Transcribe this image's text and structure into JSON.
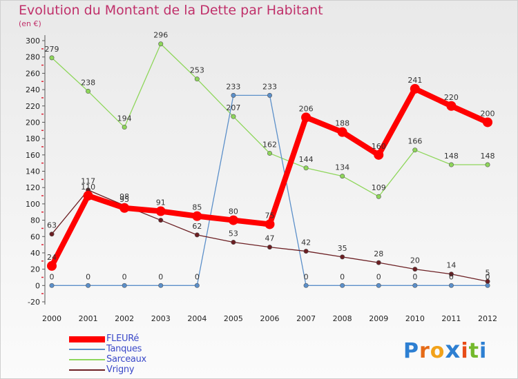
{
  "title": "Evolution du Montant de la Dette par Habitant",
  "subtitle": "(en €)",
  "brand": {
    "letters": [
      "P",
      "r",
      "o",
      "x",
      "i",
      "t",
      "i"
    ],
    "colors": [
      "#2d7fd2",
      "#e56a16",
      "#f2a21a",
      "#2d7fd2",
      "#e84c18",
      "#74b92c",
      "#2d7fd2"
    ]
  },
  "chart_data": {
    "type": "line",
    "title": "Evolution du Montant de la Dette par Habitant",
    "subtitle": "(en €)",
    "xlabel": "",
    "ylabel": "",
    "x": [
      "2000",
      "2001",
      "2002",
      "2003",
      "2004",
      "2005",
      "2006",
      "2007",
      "2008",
      "2009",
      "2010",
      "2011",
      "2012"
    ],
    "ylim": [
      -20,
      300
    ],
    "yticks": [
      -20,
      0,
      20,
      40,
      60,
      80,
      100,
      120,
      140,
      160,
      180,
      200,
      220,
      240,
      260,
      280,
      300
    ],
    "grid": false,
    "legend_position": "bottom-left",
    "series": [
      {
        "name": "Sarceaux",
        "color": "#8ed65a",
        "values": [
          279,
          238,
          194,
          296,
          253,
          207,
          162,
          144,
          134,
          109,
          166,
          148,
          148
        ],
        "labels": [
          "279",
          "238",
          "194",
          "296",
          "253",
          "207",
          "162",
          "144",
          "134",
          "109",
          "166",
          "148",
          "148"
        ]
      },
      {
        "name": "Tanques",
        "color": "#5b8fc9",
        "values": [
          0,
          0,
          0,
          0,
          0,
          233,
          233,
          0,
          0,
          0,
          0,
          0,
          0
        ],
        "labels": [
          "0",
          "0",
          "0",
          "0",
          "0",
          "233",
          "233",
          "0",
          "0",
          "0",
          "0",
          "0",
          "0"
        ]
      },
      {
        "name": "Vrigny",
        "color": "#6b1e22",
        "values": [
          63,
          117,
          98,
          80,
          62,
          53,
          47,
          42,
          35,
          28,
          20,
          14,
          5
        ],
        "labels": [
          "63",
          "117",
          "98",
          "",
          "62",
          "53",
          "47",
          "42",
          "35",
          "28",
          "20",
          "14",
          "5"
        ]
      },
      {
        "name": "FLEURé",
        "color": "#ff0000",
        "values": [
          24,
          110,
          95,
          91,
          85,
          80,
          75,
          206,
          188,
          160,
          241,
          220,
          200
        ],
        "labels": [
          "24",
          "110",
          "95",
          "91",
          "85",
          "80",
          "75",
          "206",
          "188",
          "160",
          "241",
          "220",
          "200"
        ]
      }
    ],
    "legend": [
      "FLEURé",
      "Tanques",
      "Sarceaux",
      "Vrigny"
    ]
  }
}
